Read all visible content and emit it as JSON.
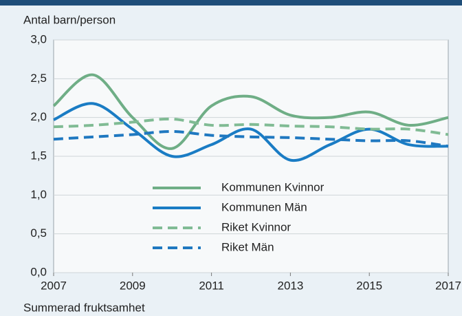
{
  "chart_data": {
    "type": "line",
    "ylabel": "Antal barn/person",
    "xlabel": "Summerad fruktsamhet",
    "x": [
      2007,
      2008,
      2009,
      2010,
      2011,
      2012,
      2013,
      2014,
      2015,
      2016,
      2017
    ],
    "xlim": [
      2007,
      2017
    ],
    "xticks": [
      2007,
      2009,
      2011,
      2013,
      2015,
      2017
    ],
    "ylim": [
      0,
      3
    ],
    "yticks": [
      {
        "value": 0,
        "label": "0,0"
      },
      {
        "value": 0.5,
        "label": "0,5"
      },
      {
        "value": 1,
        "label": "1,0"
      },
      {
        "value": 1.5,
        "label": "1,5"
      },
      {
        "value": 2,
        "label": "2,0"
      },
      {
        "value": 2.5,
        "label": "2,5"
      },
      {
        "value": 3,
        "label": "3,0"
      }
    ],
    "grid": true,
    "series": [
      {
        "name": "Kommunen Kvinnor",
        "color": "#6fae86",
        "dashed": false,
        "values": [
          2.15,
          2.55,
          2.0,
          1.6,
          2.15,
          2.27,
          2.03,
          2.0,
          2.07,
          1.9,
          2.0
        ]
      },
      {
        "name": "Kommunen Män",
        "color": "#1a7cc4",
        "dashed": false,
        "values": [
          1.97,
          2.18,
          1.85,
          1.5,
          1.65,
          1.85,
          1.45,
          1.65,
          1.85,
          1.65,
          1.63
        ]
      },
      {
        "name": "Riket Kvinnor",
        "color": "#80bb94",
        "dashed": true,
        "values": [
          1.88,
          1.9,
          1.94,
          1.98,
          1.9,
          1.91,
          1.89,
          1.88,
          1.85,
          1.85,
          1.78
        ]
      },
      {
        "name": "Riket Män",
        "color": "#1f78c0",
        "dashed": true,
        "values": [
          1.72,
          1.75,
          1.78,
          1.82,
          1.77,
          1.75,
          1.74,
          1.72,
          1.7,
          1.7,
          1.63
        ]
      }
    ]
  }
}
